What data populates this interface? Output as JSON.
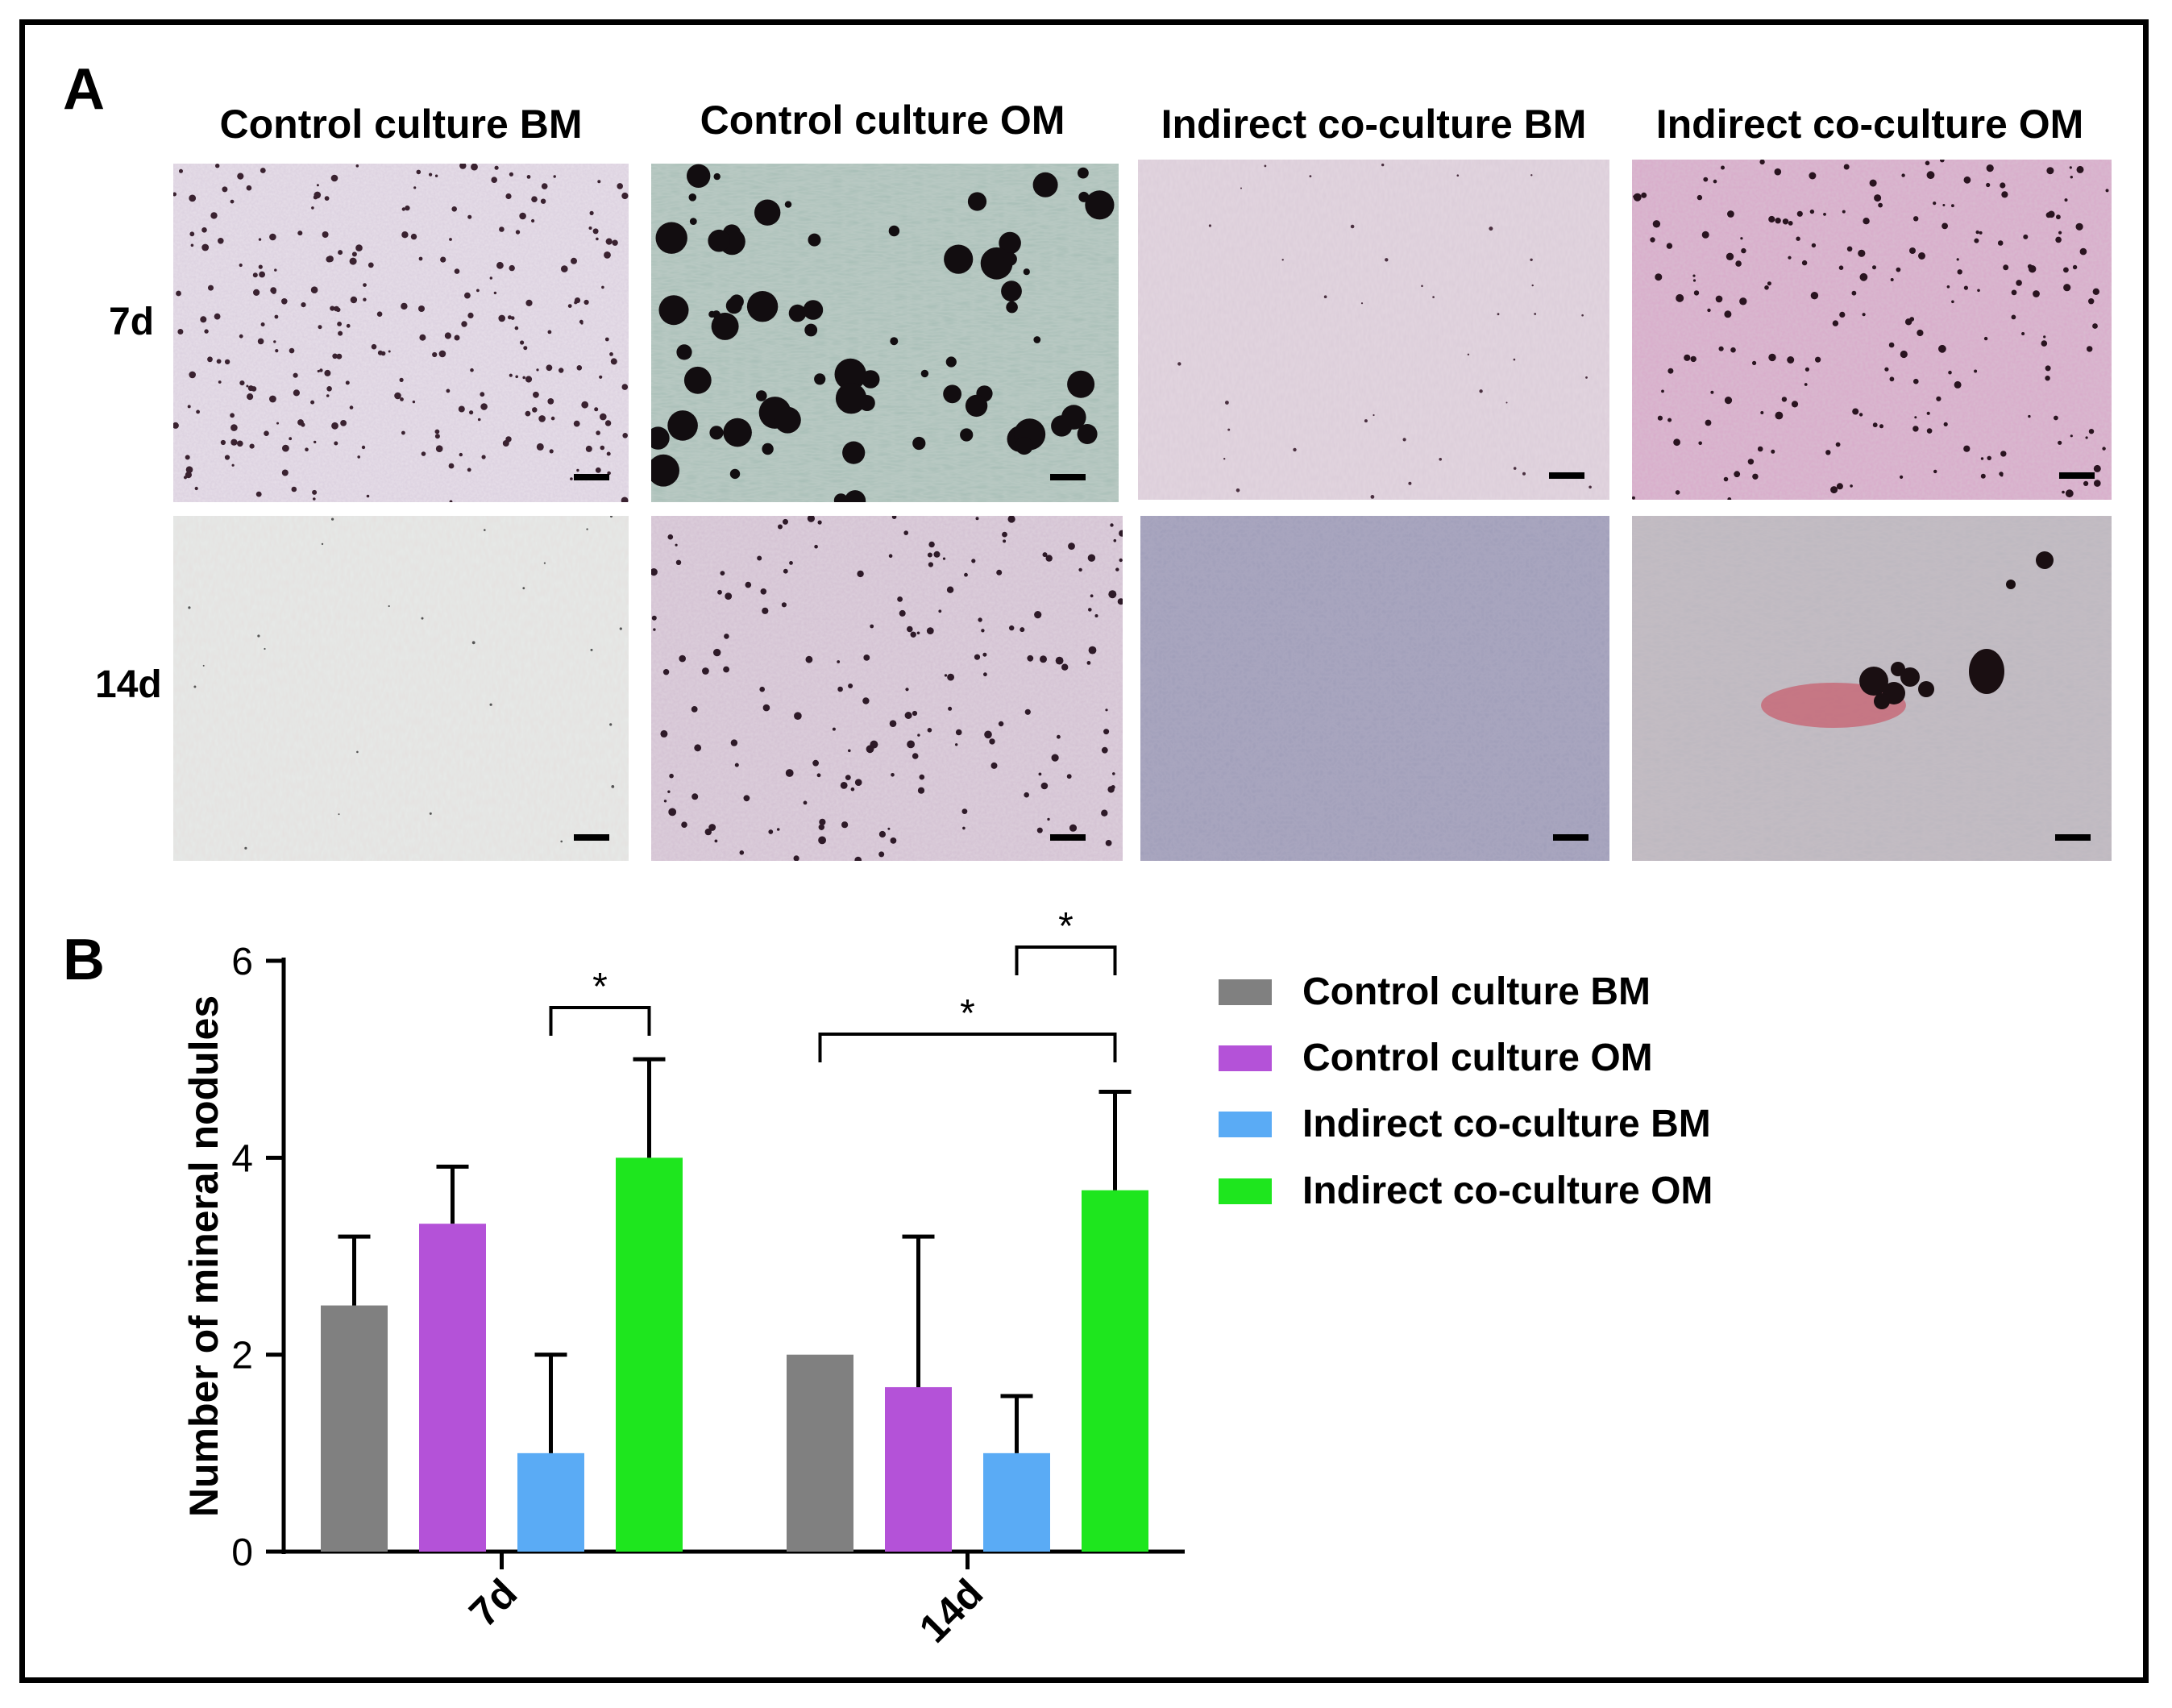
{
  "panelA": {
    "letter": "A",
    "columns": [
      "Control culture BM",
      "Control culture OM",
      "Indirect co-culture BM",
      "Indirect co-culture OM"
    ],
    "rows": [
      "7d",
      "14d"
    ]
  },
  "panelB": {
    "letter": "B"
  },
  "colors": {
    "control_bm": "#808080",
    "control_om": "#b452d8",
    "indirect_bm": "#5aabf5",
    "indirect_om": "#1ee61e"
  },
  "chart_data": {
    "type": "bar",
    "categories": [
      "7d",
      "14d"
    ],
    "ylabel": "Number of mineral nodules",
    "xlabel": "",
    "ylim": [
      0,
      6
    ],
    "yticks": [
      0,
      2,
      4,
      6
    ],
    "series": [
      {
        "name": "Control culture BM",
        "values": [
          2.5,
          2.0
        ],
        "errors": [
          0.7,
          0.0
        ],
        "color": "#808080"
      },
      {
        "name": "Control culture OM",
        "values": [
          3.33,
          1.67
        ],
        "errors": [
          0.58,
          1.53
        ],
        "color": "#b452d8"
      },
      {
        "name": "Indirect co-culture BM",
        "values": [
          1.0,
          1.0
        ],
        "errors": [
          1.0,
          0.58
        ],
        "color": "#5aabf5"
      },
      {
        "name": "Indirect co-culture OM",
        "values": [
          4.0,
          3.67
        ],
        "errors": [
          1.0,
          1.0
        ],
        "color": "#1ee61e"
      }
    ],
    "significance": [
      {
        "category": "7d",
        "from": 2,
        "to": 3,
        "label": "*"
      },
      {
        "category": "14d",
        "from": 2,
        "to": 3,
        "label": "*"
      },
      {
        "category": "14d",
        "from": 0,
        "to": 3,
        "label": "*"
      }
    ],
    "legend": "right"
  }
}
